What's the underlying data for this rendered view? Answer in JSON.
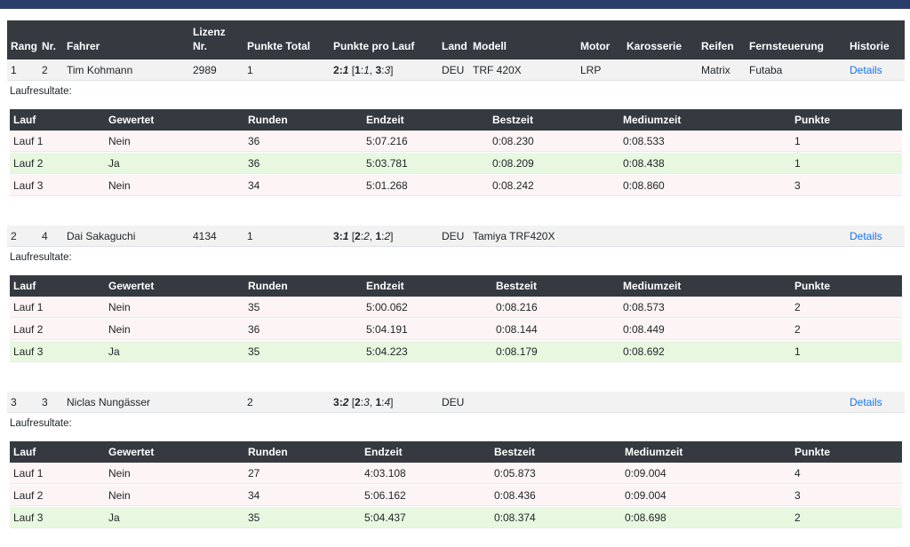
{
  "header": {
    "rang": "Rang",
    "nr": "Nr.",
    "fahrer": "Fahrer",
    "lizenz_1": "Lizenz",
    "lizenz_2": "Nr.",
    "punkte_total": "Punkte Total",
    "punkte_pro_lauf": "Punkte pro Lauf",
    "land": "Land",
    "modell": "Modell",
    "motor": "Motor",
    "karosserie": "Karosserie",
    "reifen": "Reifen",
    "fernsteuerung": "Fernsteuerung",
    "historie": "Historie"
  },
  "sub_header": {
    "lauf": "Lauf",
    "gewertet": "Gewertet",
    "runden": "Runden",
    "endzeit": "Endzeit",
    "bestzeit": "Bestzeit",
    "mediumzeit": "Mediumzeit",
    "punkte": "Punkte"
  },
  "laufresultate_label": "Laufresultate:",
  "details_label": "Details",
  "drivers": [
    {
      "rang": "1",
      "nr": "2",
      "fahrer": "Tim Kohmann",
      "lizenz": "2989",
      "punkte_total": "1",
      "ppl": {
        "a": "2",
        "b": "1",
        "items": [
          {
            "r": "1",
            "p": "1"
          },
          {
            "r": "3",
            "p": "3"
          }
        ]
      },
      "land": "DEU",
      "modell": "TRF 420X",
      "motor": "LRP",
      "karosserie": "",
      "reifen": "Matrix",
      "fernsteuerung": "Futaba",
      "runs": [
        {
          "lauf": "Lauf 1",
          "gewertet": "Nein",
          "runden": "36",
          "endzeit": "5:07.216",
          "bestzeit": "0:08.230",
          "mediumzeit": "0:08.533",
          "punkte": "1"
        },
        {
          "lauf": "Lauf 2",
          "gewertet": "Ja",
          "runden": "36",
          "endzeit": "5:03.781",
          "bestzeit": "0:08.209",
          "mediumzeit": "0:08.438",
          "punkte": "1"
        },
        {
          "lauf": "Lauf 3",
          "gewertet": "Nein",
          "runden": "34",
          "endzeit": "5:01.268",
          "bestzeit": "0:08.242",
          "mediumzeit": "0:08.860",
          "punkte": "3"
        }
      ]
    },
    {
      "rang": "2",
      "nr": "4",
      "fahrer": "Dai Sakaguchi",
      "lizenz": "4134",
      "punkte_total": "1",
      "ppl": {
        "a": "3",
        "b": "1",
        "items": [
          {
            "r": "2",
            "p": "2"
          },
          {
            "r": "1",
            "p": "2"
          }
        ]
      },
      "land": "DEU",
      "modell": "Tamiya TRF420X",
      "motor": "",
      "karosserie": "",
      "reifen": "",
      "fernsteuerung": "",
      "runs": [
        {
          "lauf": "Lauf 1",
          "gewertet": "Nein",
          "runden": "35",
          "endzeit": "5:00.062",
          "bestzeit": "0:08.216",
          "mediumzeit": "0:08.573",
          "punkte": "2"
        },
        {
          "lauf": "Lauf 2",
          "gewertet": "Nein",
          "runden": "36",
          "endzeit": "5:04.191",
          "bestzeit": "0:08.144",
          "mediumzeit": "0:08.449",
          "punkte": "2"
        },
        {
          "lauf": "Lauf 3",
          "gewertet": "Ja",
          "runden": "35",
          "endzeit": "5:04.223",
          "bestzeit": "0:08.179",
          "mediumzeit": "0:08.692",
          "punkte": "1"
        }
      ]
    },
    {
      "rang": "3",
      "nr": "3",
      "fahrer": "Niclas Nungässer",
      "lizenz": "",
      "punkte_total": "2",
      "ppl": {
        "a": "3",
        "b": "2",
        "items": [
          {
            "r": "2",
            "p": "3"
          },
          {
            "r": "1",
            "p": "4"
          }
        ]
      },
      "land": "DEU",
      "modell": "",
      "motor": "",
      "karosserie": "",
      "reifen": "",
      "fernsteuerung": "",
      "runs": [
        {
          "lauf": "Lauf 1",
          "gewertet": "Nein",
          "runden": "27",
          "endzeit": "4:03.108",
          "bestzeit": "0:05.873",
          "mediumzeit": "0:09.004",
          "punkte": "4"
        },
        {
          "lauf": "Lauf 2",
          "gewertet": "Nein",
          "runden": "34",
          "endzeit": "5:06.162",
          "bestzeit": "0:08.436",
          "mediumzeit": "0:09.004",
          "punkte": "3"
        },
        {
          "lauf": "Lauf 3",
          "gewertet": "Ja",
          "runden": "35",
          "endzeit": "5:04.437",
          "bestzeit": "0:08.374",
          "mediumzeit": "0:08.698",
          "punkte": "2"
        }
      ]
    }
  ]
}
